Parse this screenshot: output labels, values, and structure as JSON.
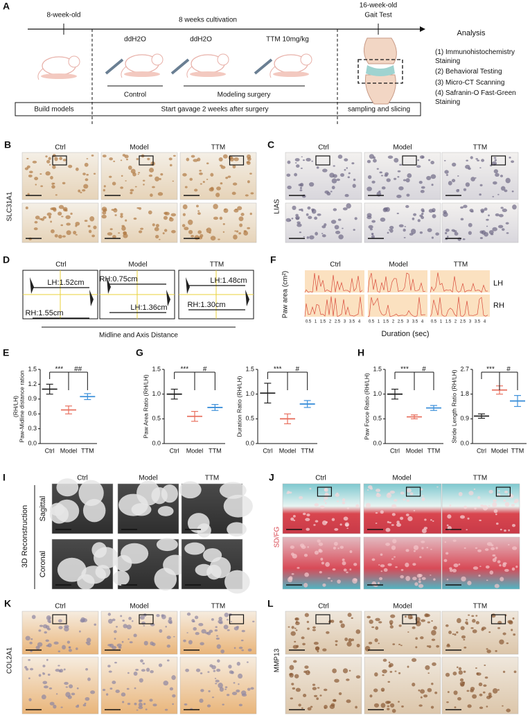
{
  "panel_a": {
    "label": "A",
    "start": "8-week-old",
    "period": "8 weeks cultivation",
    "end": "16-week-old",
    "test": "Gait Test",
    "treatments": [
      "ddH2O",
      "ddH2O",
      "TTM 10mg/kg"
    ],
    "control": "Control",
    "modeling": "Modeling surgery",
    "analysis_title": "Analysis",
    "analysis": [
      "(1) Immunohistochemistry Staining",
      "(2) Behavioral Testing",
      "(3) Micro-CT Scanning",
      "(4) Safranin-O Fast-Green Staining"
    ],
    "phases": [
      "Build models",
      "Start gavage 2 weeks after surgery",
      "sampling and slicing"
    ]
  },
  "groups": [
    "Ctrl",
    "Model",
    "TTM"
  ],
  "panel_b": {
    "label": "B",
    "stain": "SLC31A1"
  },
  "panel_c": {
    "label": "C",
    "stain": "LIAS"
  },
  "panel_d": {
    "label": "D",
    "caption": "Midline and Axis Distance",
    "measures": [
      [
        "LH:1.52cm",
        "RH:1.55cm"
      ],
      [
        "RH:0.75cm",
        "LH:1.36cm"
      ],
      [
        "LH:1.48cm",
        "RH:1.30cm"
      ]
    ]
  },
  "panel_f": {
    "label": "F",
    "ylabel": "Paw area (cm²)",
    "xlabel": "Duration (sec)",
    "paws": [
      "LH",
      "RH"
    ],
    "xticks": [
      0.5,
      1,
      1.5,
      2,
      2.5,
      3,
      3.5,
      4
    ]
  },
  "panel_e": {
    "label": "E"
  },
  "panel_g": {
    "label": "G"
  },
  "panel_h": {
    "label": "H"
  },
  "panel_i": {
    "label": "I",
    "title": "3D Reconstruction",
    "views": [
      "Sagittal",
      "Coronal"
    ]
  },
  "panel_j": {
    "label": "J",
    "stain": "SD/FG"
  },
  "panel_k": {
    "label": "K",
    "stain": "COL2A1"
  },
  "panel_l": {
    "label": "L",
    "stain": "MMP13"
  },
  "chart_data": [
    {
      "type": "dot",
      "ylabel": [
        "Paw-Midline distance ration",
        "(RH/LH)"
      ],
      "categories": [
        "Ctrl",
        "Model",
        "TTM"
      ],
      "colors": [
        "#222222",
        "#e8705f",
        "#3b8fd9"
      ],
      "values": [
        1.1,
        0.68,
        0.95
      ],
      "errors": [
        0.1,
        0.08,
        0.06
      ],
      "ylim": [
        0,
        1.5
      ],
      "yticks": [
        {
          "value": 0,
          "label": "0.0"
        },
        0.3,
        0.6,
        0.9,
        1.2,
        1.5
      ],
      "significance": [
        "***",
        "##"
      ]
    },
    {
      "type": "dot",
      "ylabel": [
        "Paw Area Ratio (RH/LH)"
      ],
      "categories": [
        "Ctrl",
        "Model",
        "TTM"
      ],
      "colors": [
        "#222222",
        "#e8705f",
        "#3b8fd9"
      ],
      "values": [
        1.0,
        0.55,
        0.73
      ],
      "errors": [
        0.1,
        0.1,
        0.06
      ],
      "ylim": [
        0,
        1.5
      ],
      "yticks": [
        {
          "value": 0,
          "label": "0.0"
        },
        0.5,
        {
          "value": 1,
          "label": "1.0"
        },
        1.5
      ],
      "significance": [
        "***",
        "#"
      ]
    },
    {
      "type": "dot",
      "ylabel": [
        "Duration Ratio (RH/LH)"
      ],
      "categories": [
        "Ctrl",
        "Model",
        "TTM"
      ],
      "colors": [
        "#222222",
        "#e8705f",
        "#3b8fd9"
      ],
      "values": [
        1.02,
        0.5,
        0.8
      ],
      "errors": [
        0.2,
        0.1,
        0.07
      ],
      "ylim": [
        0,
        1.5
      ],
      "yticks": [
        {
          "value": 0,
          "label": "0.0"
        },
        0.5,
        {
          "value": 1,
          "label": "1.0"
        },
        1.5
      ],
      "significance": [
        "***",
        "#"
      ]
    },
    {
      "type": "dot",
      "ylabel": [
        "Paw Force Ratio (RH/LH)"
      ],
      "categories": [
        "Ctrl",
        "Model",
        "TTM"
      ],
      "colors": [
        "#222222",
        "#e8705f",
        "#3b8fd9"
      ],
      "values": [
        1.0,
        0.54,
        0.72
      ],
      "errors": [
        0.1,
        0.04,
        0.05
      ],
      "ylim": [
        0,
        1.5
      ],
      "yticks": [
        {
          "value": 0,
          "label": "0.0"
        },
        0.5,
        {
          "value": 1,
          "label": "1.0"
        },
        1.5
      ],
      "significance": [
        "***",
        "#"
      ]
    },
    {
      "type": "dot",
      "ylabel": [
        "Stride Length Ratio (RH/LH)"
      ],
      "categories": [
        "Ctrl",
        "Model",
        "TTM"
      ],
      "colors": [
        "#222222",
        "#e8705f",
        "#3b8fd9"
      ],
      "values": [
        1.0,
        1.95,
        1.55
      ],
      "errors": [
        0.08,
        0.15,
        0.2
      ],
      "ylim": [
        0,
        2.7
      ],
      "yticks": [
        {
          "value": 0,
          "label": "0.0"
        },
        0.9,
        1.8,
        2.7
      ],
      "significance": [
        "***",
        "#"
      ]
    }
  ]
}
